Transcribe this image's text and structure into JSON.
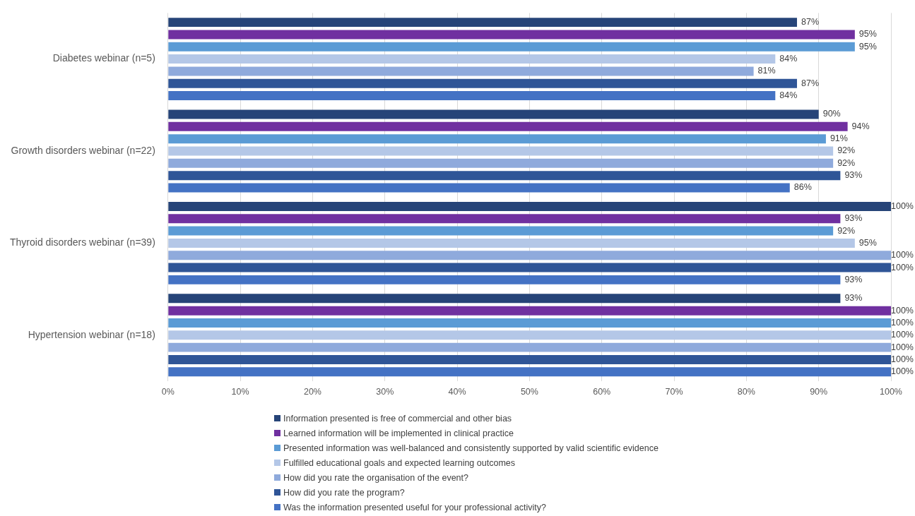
{
  "chart_data": {
    "type": "bar",
    "orientation": "horizontal",
    "categories": [
      "Diabetes webinar (n=5)",
      "Growth disorders webinar (n=22)",
      "Thyroid disorders webinar (n=39)",
      "Hypertension webinar (n=18)"
    ],
    "xlim": [
      0,
      100
    ],
    "xticks": [
      {
        "value": 0,
        "label": "0%"
      },
      {
        "value": 10,
        "label": "10%"
      },
      {
        "value": 20,
        "label": "20%"
      },
      {
        "value": 30,
        "label": "30%"
      },
      {
        "value": 40,
        "label": "40%"
      },
      {
        "value": 50,
        "label": "50%"
      },
      {
        "value": 60,
        "label": "60%"
      },
      {
        "value": 70,
        "label": "70%"
      },
      {
        "value": 80,
        "label": "80%"
      },
      {
        "value": 90,
        "label": "90%"
      },
      {
        "value": 100,
        "label": "100%"
      }
    ],
    "grid": "x",
    "legend": "bottom",
    "series": [
      {
        "name": "Information presented is free of commercial and other bias",
        "color": "#264478",
        "values": [
          87,
          90,
          100,
          93
        ],
        "value_labels": [
          "87%",
          "90%",
          "100%",
          "93%"
        ]
      },
      {
        "name": "Learned information will be implemented in clinical practice",
        "color": "#7030a0",
        "values": [
          95,
          94,
          93,
          100
        ],
        "value_labels": [
          "95%",
          "94%",
          "93%",
          "100%"
        ]
      },
      {
        "name": "Presented information was well-balanced and consistently supported by valid scientific evidence",
        "color": "#5b9bd5",
        "values": [
          95,
          91,
          92,
          100
        ],
        "value_labels": [
          "95%",
          "91%",
          "92%",
          "100%"
        ]
      },
      {
        "name": "Fulfilled educational goals and expected learning outcomes",
        "color": "#b4c7e7",
        "values": [
          84,
          92,
          95,
          100
        ],
        "value_labels": [
          "84%",
          "92%",
          "95%",
          "100%"
        ]
      },
      {
        "name": "How did you rate the organisation of the event?",
        "color": "#8faadc",
        "values": [
          81,
          92,
          100,
          100
        ],
        "value_labels": [
          "81%",
          "92%",
          "100%",
          "100%"
        ]
      },
      {
        "name": "How did you rate the program?",
        "color": "#2f5597",
        "values": [
          87,
          93,
          100,
          100
        ],
        "value_labels": [
          "87%",
          "93%",
          "100%",
          "100%"
        ]
      },
      {
        "name": "Was the information presented useful for your professional activity?",
        "color": "#4472c4",
        "values": [
          84,
          86,
          93,
          100
        ],
        "value_labels": [
          "84%",
          "86%",
          "93%",
          "100%"
        ]
      }
    ]
  }
}
